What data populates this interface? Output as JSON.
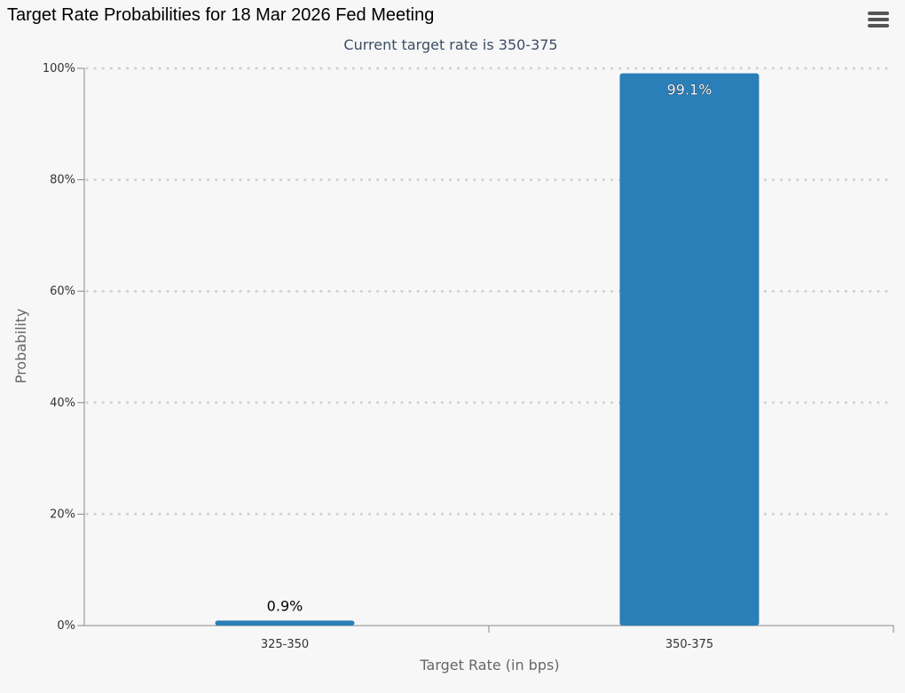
{
  "header": {
    "title": "Target Rate Probabilities for 18 Mar 2026 Fed Meeting",
    "menu_icon": "hamburger-menu-icon"
  },
  "chart_data": {
    "type": "bar",
    "title": "Target Rate Probabilities for 18 Mar 2026 Fed Meeting",
    "subtitle": "Current target rate is 350-375",
    "categories": [
      "325-350",
      "350-375"
    ],
    "values": [
      0.9,
      99.1
    ],
    "data_labels": [
      "0.9%",
      "99.1%"
    ],
    "xlabel": "Target Rate (in bps)",
    "ylabel": "Probability",
    "ylim": [
      0,
      100
    ],
    "yticks": [
      "0%",
      "20%",
      "40%",
      "60%",
      "80%",
      "100%"
    ],
    "grid": true,
    "legend": "none",
    "colors": {
      "bar": "#2b7fb8",
      "grid": "#d0d0d0",
      "axis": "#888888"
    }
  }
}
